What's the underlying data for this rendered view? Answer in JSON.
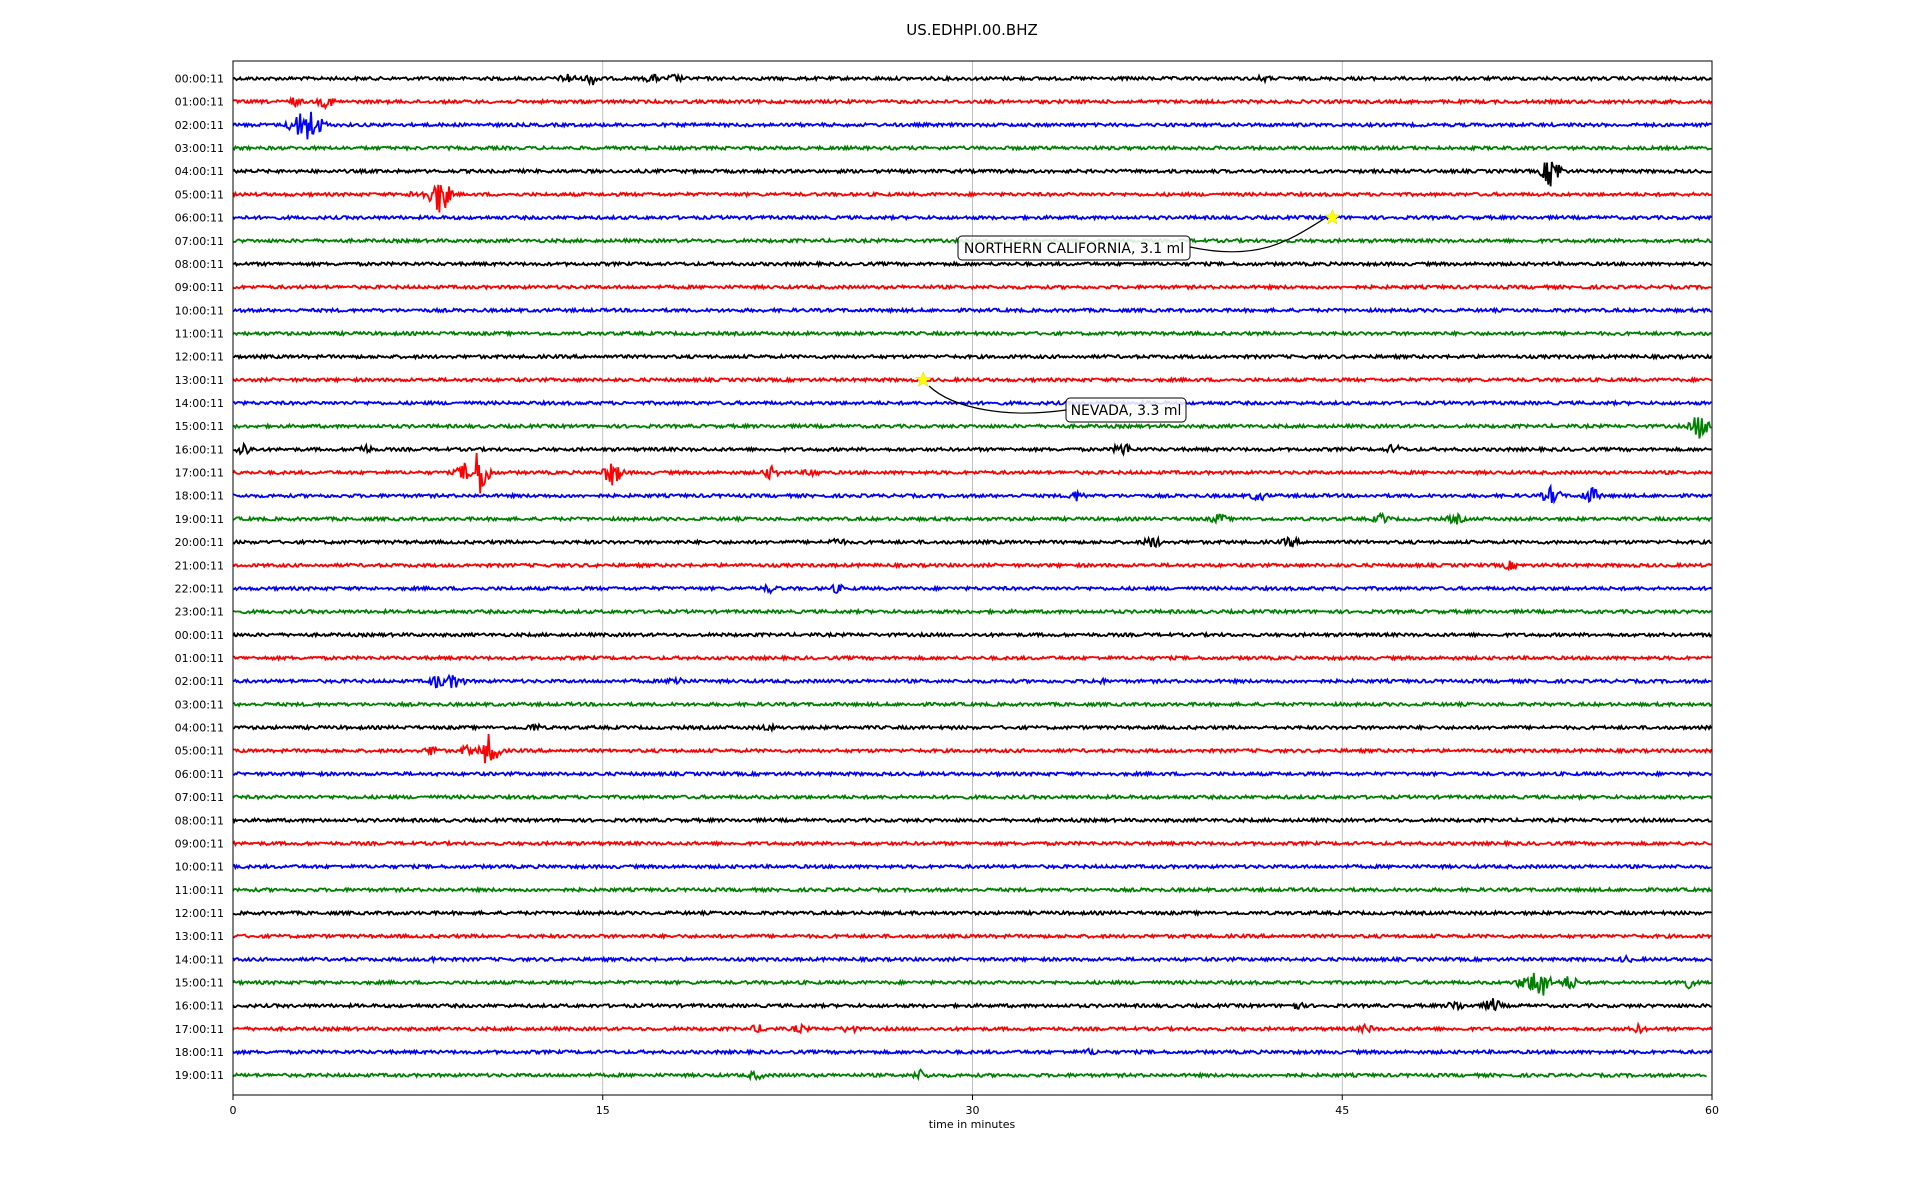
{
  "chart_data": {
    "type": "line",
    "title": "US.EDHPI.00.BHZ",
    "xlabel": "time in minutes",
    "xlim": [
      0,
      60
    ],
    "xticks": [
      0,
      15,
      30,
      45,
      60
    ],
    "grid": "vertical",
    "track_colors": [
      "#000000",
      "#ff0000",
      "#0000ff",
      "#008000"
    ],
    "hour_labels": [
      "00:00:11",
      "01:00:11",
      "02:00:11",
      "03:00:11",
      "04:00:11",
      "05:00:11",
      "06:00:11",
      "07:00:11",
      "08:00:11",
      "09:00:11",
      "10:00:11",
      "11:00:11",
      "12:00:11",
      "13:00:11",
      "14:00:11",
      "15:00:11",
      "16:00:11",
      "17:00:11",
      "18:00:11",
      "19:00:11",
      "20:00:11",
      "21:00:11",
      "22:00:11",
      "23:00:11",
      "00:00:11",
      "01:00:11",
      "02:00:11",
      "03:00:11",
      "04:00:11",
      "05:00:11",
      "06:00:11",
      "07:00:11",
      "08:00:11",
      "09:00:11",
      "10:00:11",
      "11:00:11",
      "12:00:11",
      "13:00:11",
      "14:00:11",
      "15:00:11",
      "16:00:11",
      "17:00:11",
      "18:00:11",
      "19:00:11"
    ],
    "events": [
      {
        "label": "NORTHERN CALIFORNIA, 3.1 ml",
        "row": 6,
        "minute": 44.6,
        "marker_color": "#ffff00"
      },
      {
        "label": "NEVADA, 3.3 ml",
        "row": 13,
        "minute": 28.0,
        "marker_color": "#ffff00"
      }
    ],
    "bursts": [
      {
        "row": 0,
        "minute": 13.6,
        "amp": 6
      },
      {
        "row": 0,
        "minute": 14.6,
        "amp": 7
      },
      {
        "row": 0,
        "minute": 17.0,
        "amp": 5
      },
      {
        "row": 0,
        "minute": 17.9,
        "amp": 5
      },
      {
        "row": 0,
        "minute": 41.8,
        "amp": 4
      },
      {
        "row": 1,
        "minute": 2.5,
        "amp": 5
      },
      {
        "row": 1,
        "minute": 3.8,
        "amp": 7
      },
      {
        "row": 2,
        "minute": 2.6,
        "amp": 12
      },
      {
        "row": 2,
        "minute": 3.0,
        "amp": 22
      },
      {
        "row": 2,
        "minute": 3.4,
        "amp": 10
      },
      {
        "row": 4,
        "minute": 53.5,
        "amp": 18
      },
      {
        "row": 5,
        "minute": 8.4,
        "amp": 22
      },
      {
        "row": 5,
        "minute": 7.5,
        "amp": 6
      },
      {
        "row": 15,
        "minute": 59.5,
        "amp": 14
      },
      {
        "row": 16,
        "minute": 0.4,
        "amp": 8
      },
      {
        "row": 16,
        "minute": 5.3,
        "amp": 6
      },
      {
        "row": 16,
        "minute": 36.1,
        "amp": 8
      },
      {
        "row": 16,
        "minute": 47.1,
        "amp": 6
      },
      {
        "row": 17,
        "minute": 10.0,
        "amp": 26
      },
      {
        "row": 17,
        "minute": 9.4,
        "amp": 10
      },
      {
        "row": 17,
        "minute": 15.4,
        "amp": 14
      },
      {
        "row": 17,
        "minute": 21.8,
        "amp": 7
      },
      {
        "row": 17,
        "minute": 23.5,
        "amp": 5
      },
      {
        "row": 18,
        "minute": 34.2,
        "amp": 6
      },
      {
        "row": 18,
        "minute": 41.6,
        "amp": 6
      },
      {
        "row": 18,
        "minute": 53.5,
        "amp": 10
      },
      {
        "row": 18,
        "minute": 55.1,
        "amp": 9
      },
      {
        "row": 19,
        "minute": 40.0,
        "amp": 6
      },
      {
        "row": 19,
        "minute": 46.6,
        "amp": 6
      },
      {
        "row": 19,
        "minute": 49.6,
        "amp": 6
      },
      {
        "row": 20,
        "minute": 24.5,
        "amp": 5
      },
      {
        "row": 20,
        "minute": 37.3,
        "amp": 7
      },
      {
        "row": 20,
        "minute": 42.9,
        "amp": 6
      },
      {
        "row": 21,
        "minute": 51.8,
        "amp": 5
      },
      {
        "row": 22,
        "minute": 21.8,
        "amp": 5
      },
      {
        "row": 22,
        "minute": 24.5,
        "amp": 5
      },
      {
        "row": 26,
        "minute": 8.3,
        "amp": 8
      },
      {
        "row": 26,
        "minute": 9.0,
        "amp": 9
      },
      {
        "row": 26,
        "minute": 18.0,
        "amp": 6
      },
      {
        "row": 26,
        "minute": 35.1,
        "amp": 4
      },
      {
        "row": 28,
        "minute": 12.2,
        "amp": 5
      },
      {
        "row": 28,
        "minute": 21.7,
        "amp": 4
      },
      {
        "row": 29,
        "minute": 10.4,
        "amp": 18
      },
      {
        "row": 29,
        "minute": 8.1,
        "amp": 6
      },
      {
        "row": 29,
        "minute": 9.5,
        "amp": 6
      },
      {
        "row": 38,
        "minute": 8.2,
        "amp": 4
      },
      {
        "row": 38,
        "minute": 56.5,
        "amp": 4
      },
      {
        "row": 39,
        "minute": 53.0,
        "amp": 20
      },
      {
        "row": 39,
        "minute": 52.4,
        "amp": 8
      },
      {
        "row": 39,
        "minute": 54.2,
        "amp": 8
      },
      {
        "row": 39,
        "minute": 58.9,
        "amp": 8
      },
      {
        "row": 40,
        "minute": 43.1,
        "amp": 5
      },
      {
        "row": 40,
        "minute": 49.6,
        "amp": 6
      },
      {
        "row": 40,
        "minute": 51.1,
        "amp": 8
      },
      {
        "row": 41,
        "minute": 21.3,
        "amp": 5
      },
      {
        "row": 41,
        "minute": 23.0,
        "amp": 5
      },
      {
        "row": 41,
        "minute": 25.0,
        "amp": 5
      },
      {
        "row": 41,
        "minute": 46.0,
        "amp": 5
      },
      {
        "row": 41,
        "minute": 57.0,
        "amp": 5
      },
      {
        "row": 42,
        "minute": 34.8,
        "amp": 4
      },
      {
        "row": 43,
        "minute": 21.2,
        "amp": 5
      },
      {
        "row": 43,
        "minute": 27.9,
        "amp": 6
      }
    ]
  }
}
